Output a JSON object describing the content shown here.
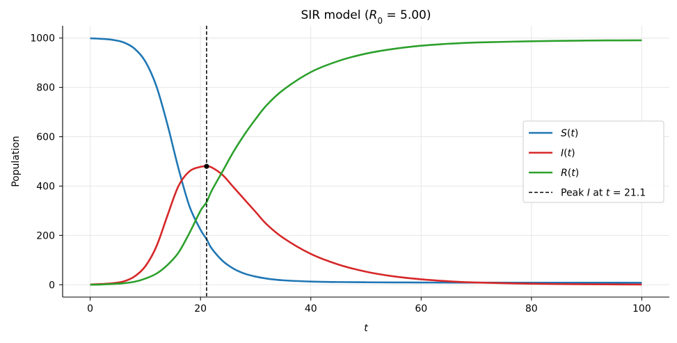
{
  "chart_data": {
    "type": "line",
    "title": "SIR model (R_0 = 5.00)",
    "title_parts": {
      "prefix": "SIR model (",
      "var": "R",
      "sub": "0",
      "suffix": " = 5.00)"
    },
    "xlabel": "t",
    "ylabel": "Population",
    "xlim": [
      -5,
      105
    ],
    "ylim": [
      -50,
      1050
    ],
    "xticks": [
      0,
      20,
      40,
      60,
      80,
      100
    ],
    "yticks": [
      0,
      200,
      400,
      600,
      800,
      1000
    ],
    "grid": true,
    "legend_position": "center-right",
    "x": [
      0,
      2,
      4,
      6,
      8,
      10,
      12,
      14,
      16,
      18,
      20,
      21.1,
      22,
      24,
      26,
      28,
      30,
      32,
      35,
      40,
      45,
      50,
      55,
      60,
      65,
      70,
      80,
      90,
      100
    ],
    "series": [
      {
        "name": "S(t)",
        "var": "S",
        "arg": "t",
        "color": "#1f77b4",
        "values": [
          999,
          997,
          993,
          983,
          958,
          905,
          805,
          650,
          472,
          318,
          223,
          185,
          148,
          97,
          65,
          45,
          33,
          25,
          18,
          13,
          11,
          10,
          9.5,
          9,
          8.8,
          8.6,
          8.4,
          8.3,
          8.2
        ]
      },
      {
        "name": "I(t)",
        "var": "I",
        "arg": "t",
        "color": "#d62728",
        "values": [
          1,
          3,
          6,
          13,
          33,
          75,
          155,
          280,
          400,
          460,
          478,
          480,
          476,
          445,
          395,
          345,
          295,
          245,
          190,
          125,
          82,
          53,
          34,
          22,
          14,
          9,
          4,
          2,
          1
        ]
      },
      {
        "name": "R(t)",
        "var": "R",
        "arg": "t",
        "color": "#2ca02c",
        "values": [
          0,
          1,
          3,
          6,
          12,
          25,
          45,
          80,
          130,
          210,
          300,
          335,
          380,
          460,
          540,
          610,
          672,
          728,
          790,
          862,
          907,
          937,
          956,
          969,
          977,
          982,
          987,
          990,
          991
        ]
      }
    ],
    "peak": {
      "label": "Peak I at t = 21.1",
      "prefix": "Peak ",
      "var": "I",
      "mid": " at ",
      "var2": "t",
      "suffix": " = 21.1",
      "x": 21.1,
      "y": 480,
      "color": "#000000"
    }
  }
}
